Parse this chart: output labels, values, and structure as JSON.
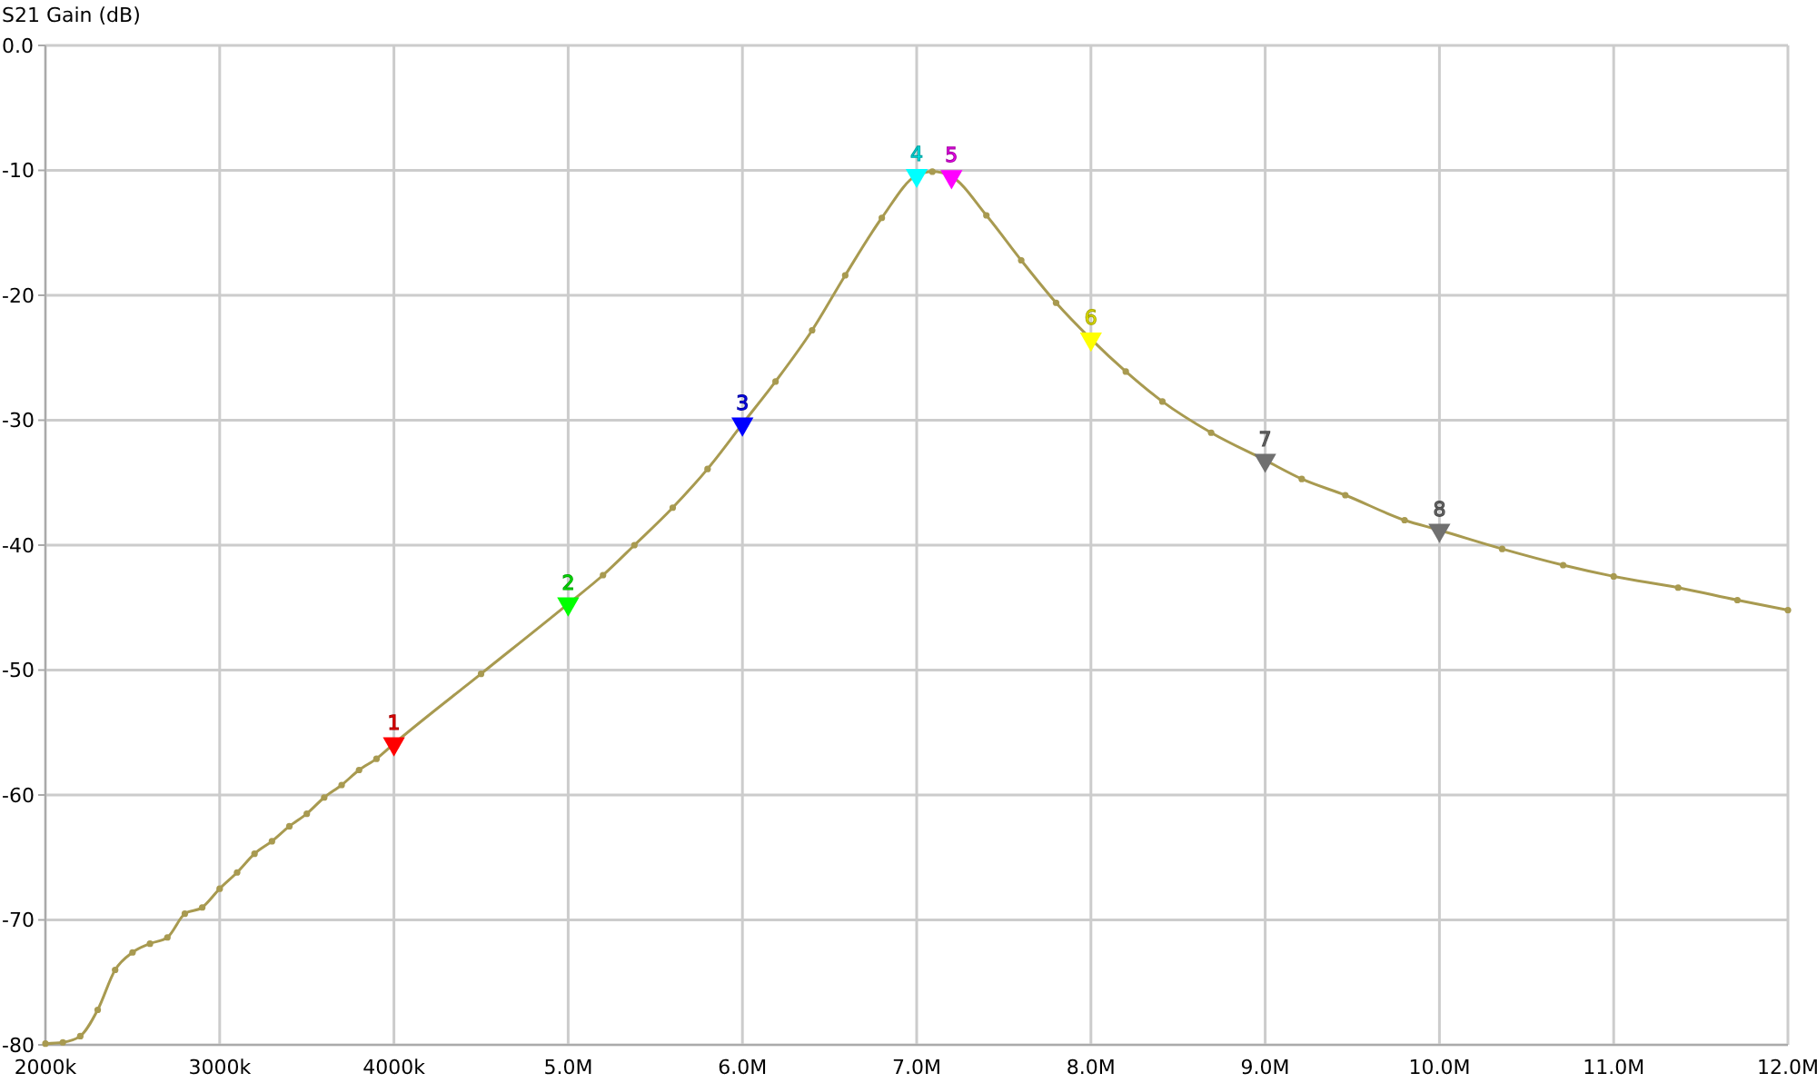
{
  "chart_data": {
    "type": "line",
    "ylabel": "S21 Gain (dB)",
    "xlim": [
      2000000,
      12000000
    ],
    "xticks": [
      {
        "value": 2000000,
        "label": "2000k"
      },
      {
        "value": 3000000,
        "label": "3000k"
      },
      {
        "value": 4000000,
        "label": "4000k"
      },
      {
        "value": 5000000,
        "label": "5.0M"
      },
      {
        "value": 6000000,
        "label": "6.0M"
      },
      {
        "value": 7000000,
        "label": "7.0M"
      },
      {
        "value": 8000000,
        "label": "8.0M"
      },
      {
        "value": 9000000,
        "label": "9.0M"
      },
      {
        "value": 10000000,
        "label": "10.0M"
      },
      {
        "value": 11000000,
        "label": "11.0M"
      },
      {
        "value": 12000000,
        "label": "12.0M"
      }
    ],
    "ylim": [
      -80,
      0
    ],
    "yticks": [
      -80,
      -70,
      -60,
      -50,
      -40,
      -30,
      -20,
      -10,
      {
        "value": 0,
        "label": "0.0"
      }
    ],
    "grid": true,
    "legend": false,
    "series": [
      {
        "color": "#a89a50",
        "marker": "circle",
        "line_style": "solid",
        "x": [
          2000000,
          2100000,
          2200000,
          2300000,
          2400000,
          2500000,
          2600000,
          2700000,
          2800000,
          2900000,
          3000000,
          3100000,
          3200000,
          3300000,
          3400000,
          3500000,
          3600000,
          3700000,
          3800000,
          3900000,
          4000000,
          4500000,
          5000000,
          5200000,
          5380000,
          5600000,
          5800000,
          6000000,
          6190000,
          6400000,
          6590000,
          6800000,
          7000000,
          7090000,
          7200000,
          7400000,
          7600000,
          7800000,
          8000000,
          8200000,
          8410000,
          8690000,
          9000000,
          9210000,
          9460000,
          9800000,
          10000000,
          10360000,
          10710000,
          11000000,
          11370000,
          11710000,
          12000000
        ],
        "values": [
          -79.9,
          -79.8,
          -79.3,
          -77.2,
          -74.0,
          -72.6,
          -71.9,
          -71.4,
          -69.5,
          -69.0,
          -67.5,
          -66.2,
          -64.7,
          -63.7,
          -62.5,
          -61.5,
          -60.2,
          -59.2,
          -58.0,
          -57.1,
          -55.9,
          -50.3,
          -44.7,
          -42.4,
          -40.0,
          -37.0,
          -33.9,
          -30.3,
          -26.9,
          -22.8,
          -18.4,
          -13.8,
          -10.4,
          -10.1,
          -10.5,
          -13.6,
          -17.2,
          -20.6,
          -23.5,
          -26.1,
          -28.5,
          -31.0,
          -33.2,
          -34.7,
          -36.0,
          -38.0,
          -38.8,
          -40.3,
          -41.6,
          -42.5,
          -43.4,
          -44.4,
          -45.2
        ]
      },
      {
        "type": "scatter",
        "name": "1",
        "color": "#ff0000",
        "marker": "triangle",
        "x": [
          4000000
        ],
        "values": [
          -55.9
        ]
      },
      {
        "type": "scatter",
        "name": "2",
        "color": "#00ff00",
        "marker": "triangle",
        "x": [
          5000000
        ],
        "values": [
          -44.7
        ]
      },
      {
        "type": "scatter",
        "name": "3",
        "color": "#0000ff",
        "marker": "triangle",
        "x": [
          6000000
        ],
        "values": [
          -30.3
        ]
      },
      {
        "type": "scatter",
        "name": "4",
        "color": "#00ffff",
        "marker": "triangle",
        "x": [
          7000000
        ],
        "values": [
          -10.4
        ]
      },
      {
        "type": "scatter",
        "name": "5",
        "color": "#ff00ff",
        "marker": "triangle",
        "x": [
          7200000
        ],
        "values": [
          -10.5
        ]
      },
      {
        "type": "scatter",
        "name": "6",
        "color": "#ffff00",
        "marker": "triangle",
        "x": [
          8000000
        ],
        "values": [
          -23.5
        ]
      },
      {
        "type": "scatter",
        "name": "7",
        "color": "#707070",
        "marker": "triangle",
        "x": [
          9000000
        ],
        "values": [
          -33.2
        ]
      },
      {
        "type": "scatter",
        "name": "8",
        "color": "#707070",
        "marker": "triangle",
        "x": [
          10000000
        ],
        "values": [
          -38.8
        ]
      }
    ]
  }
}
